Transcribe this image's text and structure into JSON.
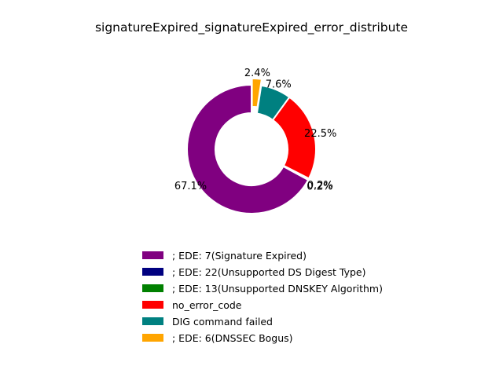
{
  "chart_data": {
    "type": "pie",
    "style": "donut",
    "title": "signatureExpired_signatureExpired_error_distribute",
    "slices": [
      {
        "label": "; EDE: 7(Signature Expired)",
        "value": 67.1,
        "pct_label": "67.1%",
        "color": "#800080",
        "explode": false
      },
      {
        "label": "; EDE: 22(Unsupported DS Digest Type)",
        "value": 0.2,
        "pct_label": "0.2%",
        "color": "#000080",
        "explode": true
      },
      {
        "label": "; EDE: 13(Unsupported DNSKEY Algorithm)",
        "value": 0.2,
        "pct_label": "0.2%",
        "color": "#008000",
        "explode": true
      },
      {
        "label": "no_error_code",
        "value": 22.5,
        "pct_label": "22.5%",
        "color": "#ff0000",
        "explode": false
      },
      {
        "label": "DIG command failed",
        "value": 7.6,
        "pct_label": "7.6%",
        "color": "#008080",
        "explode": false
      },
      {
        "label": "; EDE: 6(DNSSEC Bogus)",
        "value": 2.4,
        "pct_label": "2.4%",
        "color": "#ffa500",
        "explode": true
      }
    ],
    "legend_position": "bottom-center"
  }
}
